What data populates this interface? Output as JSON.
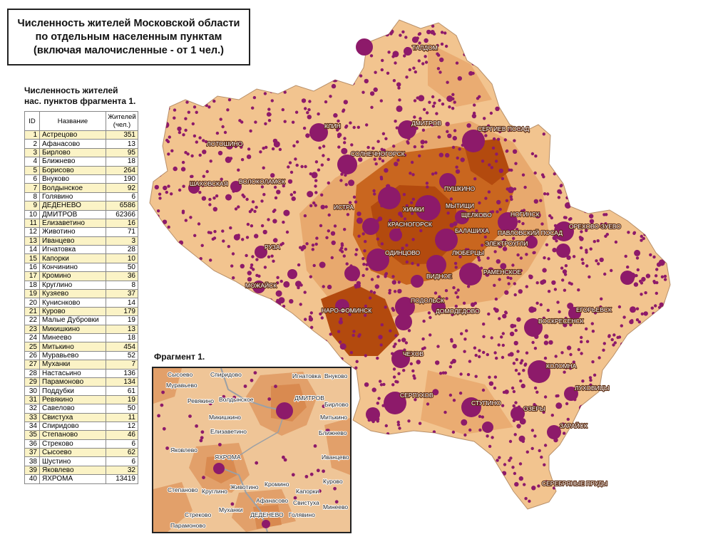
{
  "title": {
    "line1": "Численность жителей Московской области",
    "line2": "по отдельным населенным пунктам",
    "line3": "(включая малочисленные  - от 1 чел.)"
  },
  "table": {
    "title_line1": "Численность жителей",
    "title_line2": "нас. пунктов фрагмента 1.",
    "col_id": "ID",
    "col_name": "Название",
    "col_pop_line1": "Жителей",
    "col_pop_line2": "(чел.)",
    "rows": [
      {
        "id": "1",
        "name": "Астрецово",
        "pop": "351",
        "hl": true
      },
      {
        "id": "2",
        "name": "Афанасово",
        "pop": "13",
        "hl": false
      },
      {
        "id": "3",
        "name": "Бирлово",
        "pop": "95",
        "hl": true
      },
      {
        "id": "4",
        "name": "Ближнево",
        "pop": "18",
        "hl": false
      },
      {
        "id": "5",
        "name": "Борисово",
        "pop": "264",
        "hl": true
      },
      {
        "id": "6",
        "name": "Внуково",
        "pop": "190",
        "hl": false
      },
      {
        "id": "7",
        "name": "Волдынское",
        "pop": "92",
        "hl": true
      },
      {
        "id": "8",
        "name": "Голявино",
        "pop": "6",
        "hl": false
      },
      {
        "id": "9",
        "name": "ДЕДЕНЕВО",
        "pop": "6586",
        "hl": true
      },
      {
        "id": "10",
        "name": "ДМИТРОВ",
        "pop": "62366",
        "hl": false
      },
      {
        "id": "11",
        "name": "Елизаветино",
        "pop": "16",
        "hl": true
      },
      {
        "id": "12",
        "name": "Животино",
        "pop": "71",
        "hl": false
      },
      {
        "id": "13",
        "name": "Иванцево",
        "pop": "3",
        "hl": true
      },
      {
        "id": "14",
        "name": "Игнатовка",
        "pop": "28",
        "hl": false
      },
      {
        "id": "15",
        "name": "Капорки",
        "pop": "10",
        "hl": true
      },
      {
        "id": "16",
        "name": "Кончинино",
        "pop": "50",
        "hl": false
      },
      {
        "id": "17",
        "name": "Кромино",
        "pop": "36",
        "hl": true
      },
      {
        "id": "18",
        "name": "Круглино",
        "pop": "8",
        "hl": false
      },
      {
        "id": "19",
        "name": "Кузяево",
        "pop": "37",
        "hl": true
      },
      {
        "id": "20",
        "name": "Куниснково",
        "pop": "14",
        "hl": false
      },
      {
        "id": "21",
        "name": "Курово",
        "pop": "179",
        "hl": true
      },
      {
        "id": "22",
        "name": "Малые Дубровки",
        "pop": "19",
        "hl": false
      },
      {
        "id": "23",
        "name": "Микишкино",
        "pop": "13",
        "hl": true
      },
      {
        "id": "24",
        "name": "Минеево",
        "pop": "18",
        "hl": false
      },
      {
        "id": "25",
        "name": "Митькино",
        "pop": "454",
        "hl": true
      },
      {
        "id": "26",
        "name": "Муравьево",
        "pop": "52",
        "hl": false
      },
      {
        "id": "27",
        "name": "Муханки",
        "pop": "7",
        "hl": true
      },
      {
        "id": "28",
        "name": "Настасьино",
        "pop": "136",
        "hl": false
      },
      {
        "id": "29",
        "name": "Парамоново",
        "pop": "134",
        "hl": true
      },
      {
        "id": "30",
        "name": "Поддубки",
        "pop": "61",
        "hl": false
      },
      {
        "id": "31",
        "name": "Ревякино",
        "pop": "19",
        "hl": true
      },
      {
        "id": "32",
        "name": "Савелово",
        "pop": "50",
        "hl": false
      },
      {
        "id": "33",
        "name": "Свистуха",
        "pop": "11",
        "hl": true
      },
      {
        "id": "34",
        "name": "Спиридово",
        "pop": "12",
        "hl": false
      },
      {
        "id": "35",
        "name": "Степаново",
        "pop": "46",
        "hl": true
      },
      {
        "id": "36",
        "name": "Стреково",
        "pop": "6",
        "hl": false
      },
      {
        "id": "37",
        "name": "Сысоево",
        "pop": "62",
        "hl": true
      },
      {
        "id": "38",
        "name": "Шустино",
        "pop": "6",
        "hl": false
      },
      {
        "id": "39",
        "name": "Яковлево",
        "pop": "32",
        "hl": true
      },
      {
        "id": "40",
        "name": "ЯХРОМА",
        "pop": "13419",
        "hl": false
      }
    ]
  },
  "map": {
    "colors": {
      "region": "#f2c48f",
      "mid": "#e7a66a",
      "dark": "#c9661f",
      "darkest": "#b34a0e",
      "dot": "#8d1a6a"
    },
    "cities": [
      "ТАЛДОМ",
      "КЛИН",
      "ДМИТРОВ",
      "СЕРГИЕВ ПОСАД",
      "ЛОТОШИНО",
      "СОЛНЕЧНОГОРСК",
      "ШАХОВСКАЯ",
      "ВОЛОКОЛАМСК",
      "ПУШКИНО",
      "ИСТРА",
      "ХИМКИ",
      "МЫТИЩИ",
      "ЩЕЛКОВО",
      "НОГИНСК",
      "ОРЕХОВО-ЗУЕВО",
      "КРАСНОГОРСК",
      "БАЛАШИХА",
      "ПАВЛОВСКИЙ ПОСАД",
      "РУЗА",
      "ОДИНЦОВО",
      "ЛЮБЕРЦЫ",
      "ЭЛЕКТРОУГЛИ",
      "ВИДНОЕ",
      "РАМЕНСКОЕ",
      "МОЖАЙСК",
      "ПОДОЛЬСК",
      "ДОМОДЕДОВО",
      "ЕГОРЬЕВСК",
      "НАРО-ФОМИНСК",
      "ВОСКРЕСЕНСК",
      "ЧЕХОВ",
      "КОЛОМНА",
      "ЛУХОВИЦЫ",
      "СЕРПУХОВ",
      "СТУПИНО",
      "ОЗЕРЫ",
      "ЗАРАЙСК",
      "СЕРЕБРЯНЫЕ ПРУДЫ"
    ]
  },
  "fragment": {
    "title": "Фрагмент 1.",
    "labels": [
      "Сысоево",
      "Спиридово",
      "Игнатовка",
      "Внуково",
      "Муравьево",
      "Ревякино",
      "Волдынское",
      "ДМИТРОВ",
      "Бирлово",
      "Митькино",
      "Микишкино",
      "Ближнево",
      "Елизаветино",
      "Яковлево",
      "ЯХРОМА",
      "Иванцево",
      "Курово",
      "Степаново",
      "Круглино",
      "Животино",
      "Кромино",
      "Капорки",
      "Свистуха",
      "Минеево",
      "Афанасово",
      "Стреково",
      "Муханки",
      "ДЕДЕНЕВО",
      "Голявино",
      "Парамоново"
    ]
  }
}
